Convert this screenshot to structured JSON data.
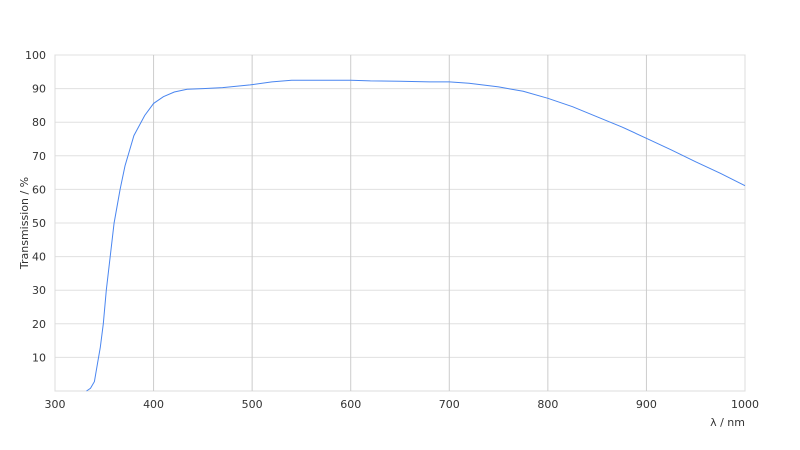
{
  "chart_data": {
    "type": "line",
    "title": "",
    "xlabel": "λ / nm",
    "ylabel": "Transmission / %",
    "xlim": [
      300,
      1000
    ],
    "ylim": [
      0,
      100
    ],
    "x_ticks": [
      300,
      400,
      500,
      600,
      700,
      800,
      900,
      1000
    ],
    "y_ticks": [
      10,
      20,
      30,
      40,
      50,
      60,
      70,
      80,
      90,
      100
    ],
    "grid": true,
    "line_color": "#4a86f0",
    "series": [
      {
        "x": [
          332,
          336,
          340,
          343,
          346,
          349,
          352,
          356,
          360,
          366,
          371,
          380,
          391,
          400,
          410,
          421,
          434,
          450,
          470,
          498,
          520,
          540,
          560,
          600,
          620,
          650,
          680,
          700,
          720,
          750,
          775,
          800,
          825,
          850,
          875,
          900,
          925,
          950,
          975,
          1000
        ],
        "y": [
          0,
          0.8,
          2.8,
          8,
          13,
          20,
          30,
          40,
          50,
          60,
          67,
          76,
          82,
          85.6,
          87.6,
          89,
          89.8,
          90,
          90.3,
          91.1,
          92,
          92.5,
          92.5,
          92.5,
          92.3,
          92.2,
          92,
          92,
          91.6,
          90.5,
          89.2,
          87.1,
          84.6,
          81.6,
          78.6,
          75.2,
          71.8,
          68.2,
          64.8,
          61.1
        ]
      }
    ]
  }
}
